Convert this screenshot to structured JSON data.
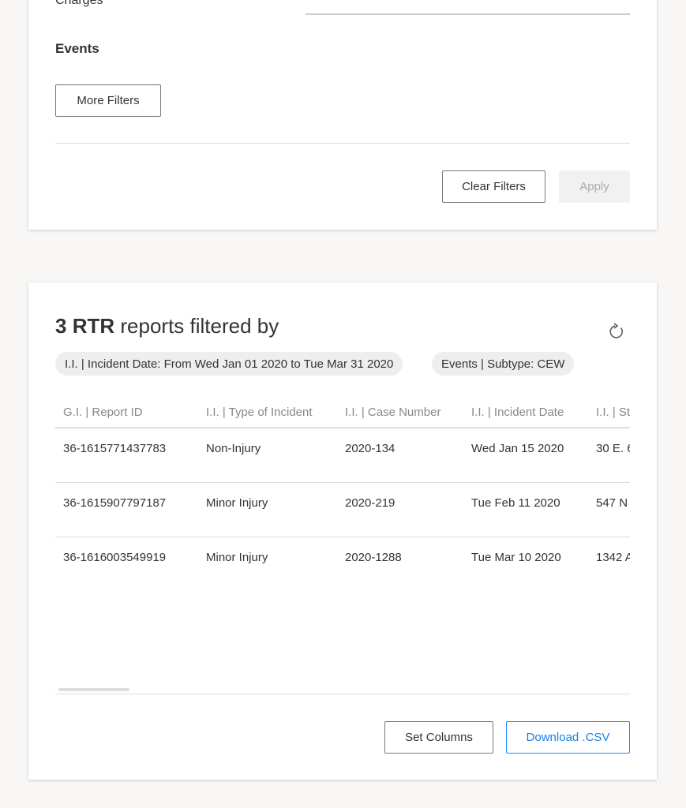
{
  "filters": {
    "charges_label": "Charges",
    "events_label": "Events",
    "more_filters": "More Filters",
    "clear_filters": "Clear Filters",
    "apply": "Apply"
  },
  "results": {
    "count": "3",
    "type": "RTR",
    "title_rest": "reports filtered by",
    "refresh_icon": "refresh-icon",
    "chips": [
      "I.I. | Incident Date: From Wed Jan 01 2020 to Tue Mar 31 2020",
      "Events | Subtype: CEW"
    ],
    "columns": [
      "G.I. | Report ID",
      "I.I. | Type of Incident",
      "I.I. | Case Number",
      "I.I. | Incident Date",
      "I.I. | Str"
    ],
    "rows": [
      [
        "36-1615771437783",
        "Non-Injury",
        "2020-134",
        "Wed Jan 15 2020",
        "30 E. 6"
      ],
      [
        "36-1615907797187",
        "Minor Injury",
        "2020-219",
        "Tue Feb 11 2020",
        "547 N"
      ],
      [
        "36-1616003549919",
        "Minor Injury",
        "2020-1288",
        "Tue Mar 10 2020",
        "1342 A"
      ]
    ],
    "set_columns": "Set Columns",
    "download": "Download .CSV"
  },
  "colors": {
    "accent": "#1a8cff"
  }
}
